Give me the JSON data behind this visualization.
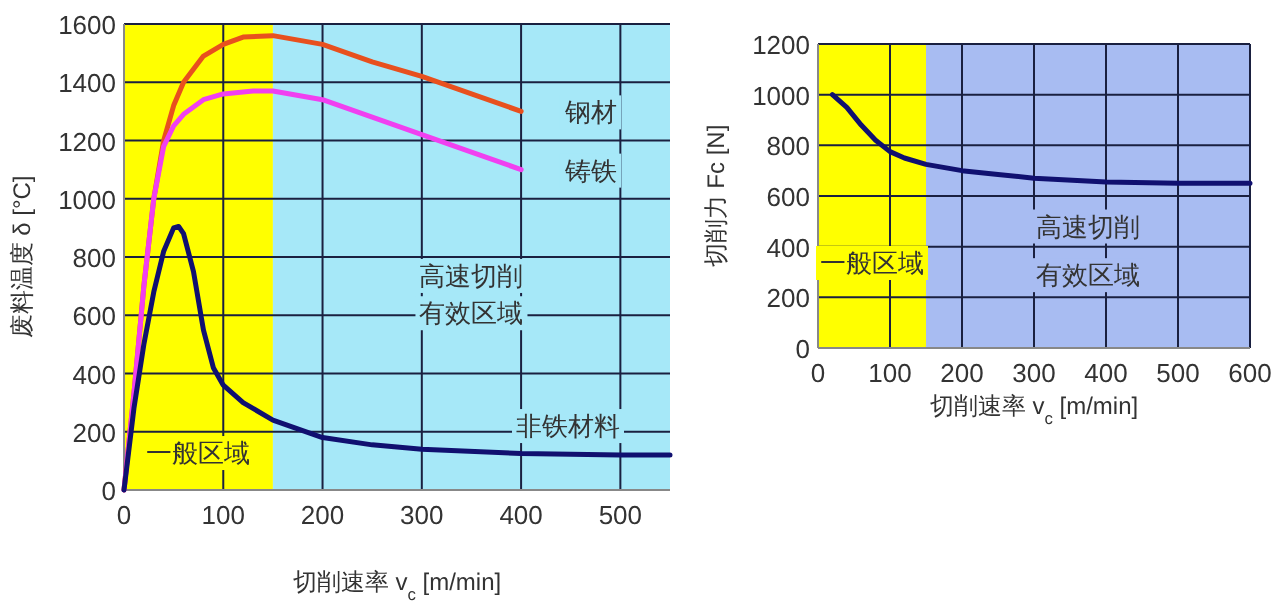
{
  "chart_data": [
    {
      "type": "line",
      "xlabel": "切削速率 v$_{c}$ [m/min]",
      "ylabel": "废料温度 δ [°C]",
      "xlim": [
        0,
        550
      ],
      "ylim": [
        0,
        1600
      ],
      "xticks": [
        0,
        100,
        200,
        300,
        400,
        500
      ],
      "yticks": [
        0,
        200,
        400,
        600,
        800,
        1000,
        1200,
        1400,
        1600
      ],
      "grid": true,
      "bands": [
        {
          "axis": "x",
          "from": 0,
          "to": 150,
          "label": "一般区域",
          "color": "#ffff00"
        },
        {
          "axis": "x",
          "from": 150,
          "to": 550,
          "color": "#a6e8f8"
        }
      ],
      "annotations": [
        "高速切削",
        "有效区域"
      ],
      "series": [
        {
          "name": "钢材",
          "color": "#e8501e",
          "x": [
            0,
            10,
            20,
            30,
            40,
            50,
            60,
            80,
            100,
            120,
            150,
            200,
            250,
            300,
            350,
            400
          ],
          "values": [
            0,
            330,
            700,
            1000,
            1200,
            1320,
            1400,
            1490,
            1530,
            1555,
            1560,
            1530,
            1470,
            1420,
            1360,
            1300
          ]
        },
        {
          "name": "铸铁",
          "color": "#f040f0",
          "x": [
            0,
            10,
            20,
            30,
            40,
            50,
            60,
            80,
            100,
            130,
            150,
            200,
            250,
            300,
            350,
            400
          ],
          "values": [
            0,
            330,
            700,
            1000,
            1180,
            1250,
            1290,
            1340,
            1360,
            1370,
            1370,
            1340,
            1280,
            1220,
            1160,
            1100
          ]
        },
        {
          "name": "非铁材料",
          "color": "#101070",
          "x": [
            0,
            10,
            20,
            30,
            40,
            50,
            55,
            60,
            70,
            80,
            90,
            100,
            120,
            150,
            200,
            250,
            300,
            400,
            500,
            550
          ],
          "values": [
            0,
            280,
            500,
            680,
            820,
            900,
            905,
            880,
            750,
            550,
            420,
            360,
            300,
            240,
            180,
            155,
            140,
            125,
            120,
            120
          ]
        }
      ]
    },
    {
      "type": "line",
      "xlabel": "切削速率 v$_{c}$ [m/min]",
      "ylabel": "切削力 Fc [N]",
      "xlim": [
        0,
        600
      ],
      "ylim": [
        0,
        1200
      ],
      "xticks": [
        0,
        100,
        200,
        300,
        400,
        500,
        600
      ],
      "yticks": [
        0,
        200,
        400,
        600,
        800,
        1000,
        1200
      ],
      "grid": true,
      "bands": [
        {
          "axis": "x",
          "from": 0,
          "to": 150,
          "label": "一般区域",
          "color": "#ffff00"
        },
        {
          "axis": "x",
          "from": 150,
          "to": 600,
          "color": "#a8bcf2"
        }
      ],
      "annotations": [
        "高速切削",
        "有效区域"
      ],
      "series": [
        {
          "color": "#101070",
          "x": [
            20,
            40,
            60,
            80,
            100,
            120,
            150,
            200,
            250,
            300,
            400,
            500,
            600
          ],
          "values": [
            1000,
            950,
            880,
            820,
            775,
            750,
            725,
            700,
            685,
            670,
            655,
            650,
            650
          ]
        }
      ]
    }
  ]
}
